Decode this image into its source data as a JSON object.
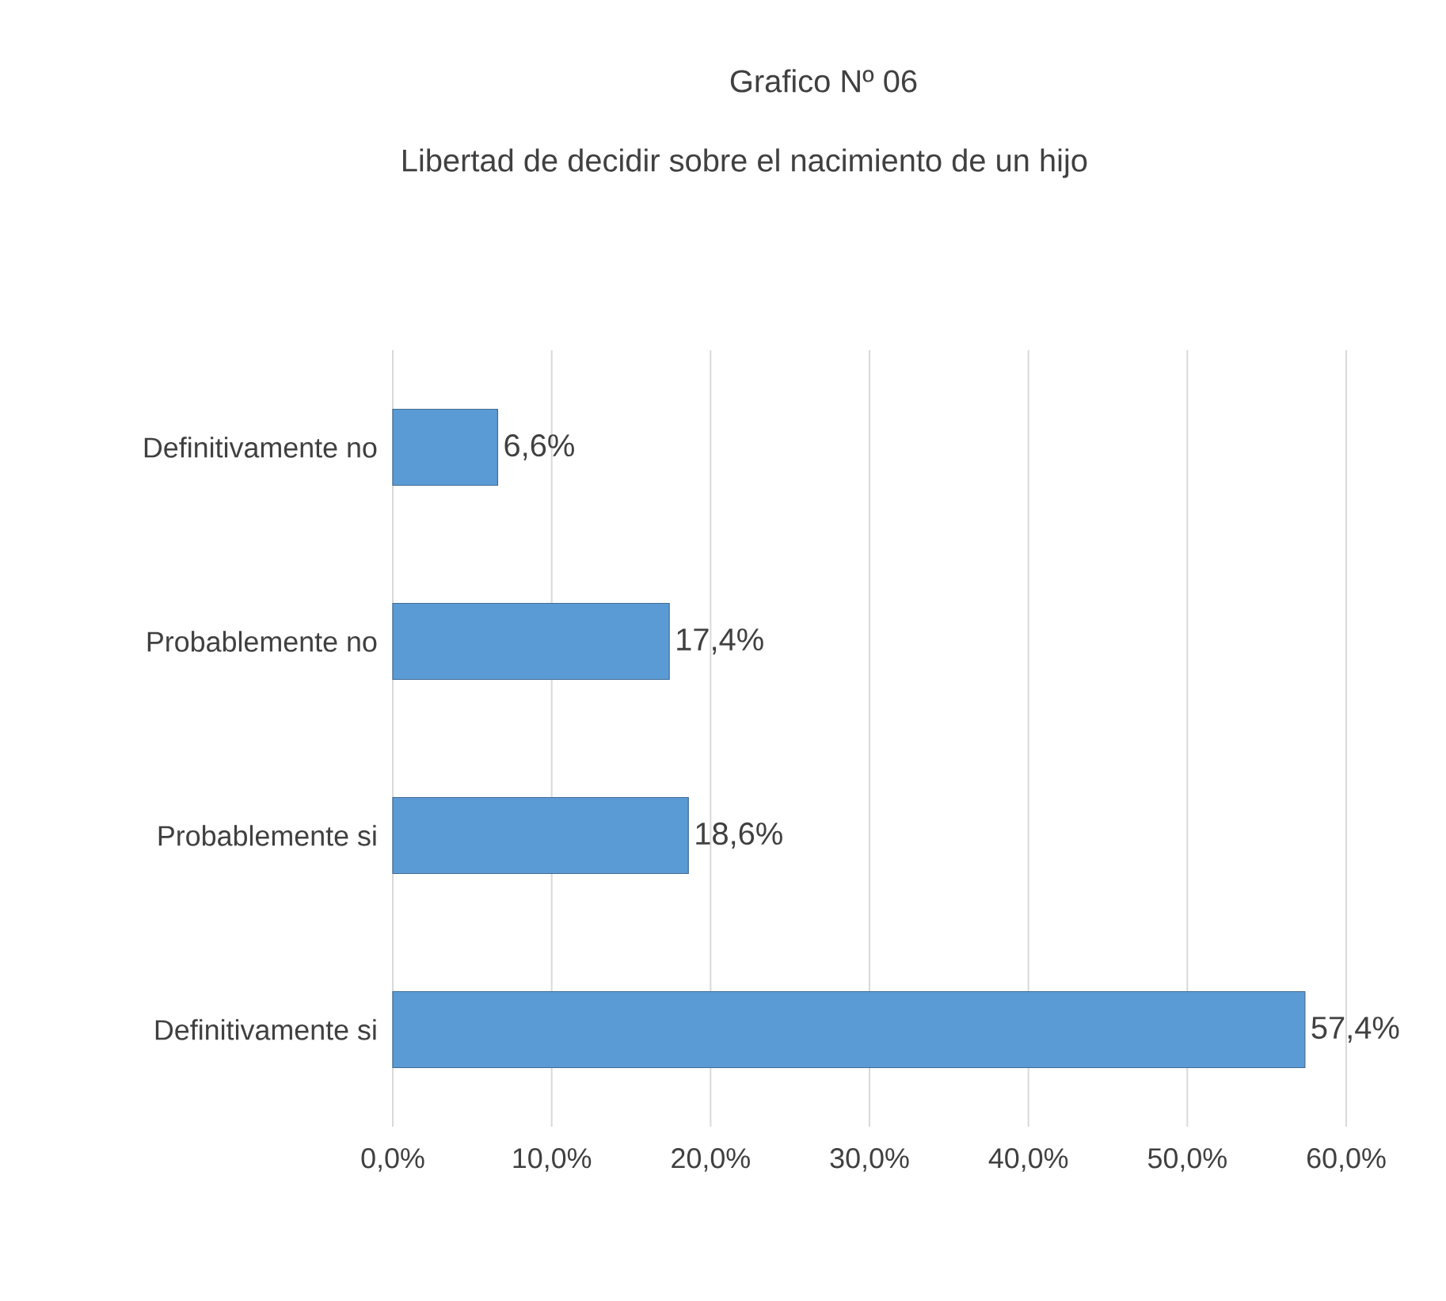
{
  "chart_data": {
    "type": "bar",
    "orientation": "horizontal",
    "title": "Grafico Nº 06",
    "subtitle": "Libertad de decidir sobre el nacimiento de un hijo",
    "categories": [
      "Definitivamente no",
      "Probablemente no",
      "Probablemente si",
      "Definitivamente si"
    ],
    "values": [
      6.6,
      17.4,
      18.6,
      57.4
    ],
    "value_labels": [
      "6,6%",
      "17,4%",
      "18,6%",
      "57,4%"
    ],
    "color": "#5b9bd5",
    "xlim": [
      0,
      60
    ],
    "xticks": [
      {
        "value": 0,
        "label": "0,0%"
      },
      {
        "value": 10,
        "label": "10,0%"
      },
      {
        "value": 20,
        "label": "20,0%"
      },
      {
        "value": 30,
        "label": "30,0%"
      },
      {
        "value": 40,
        "label": "40,0%"
      },
      {
        "value": 50,
        "label": "50,0%"
      },
      {
        "value": 60,
        "label": "60,0%"
      }
    ],
    "grid": "x"
  }
}
